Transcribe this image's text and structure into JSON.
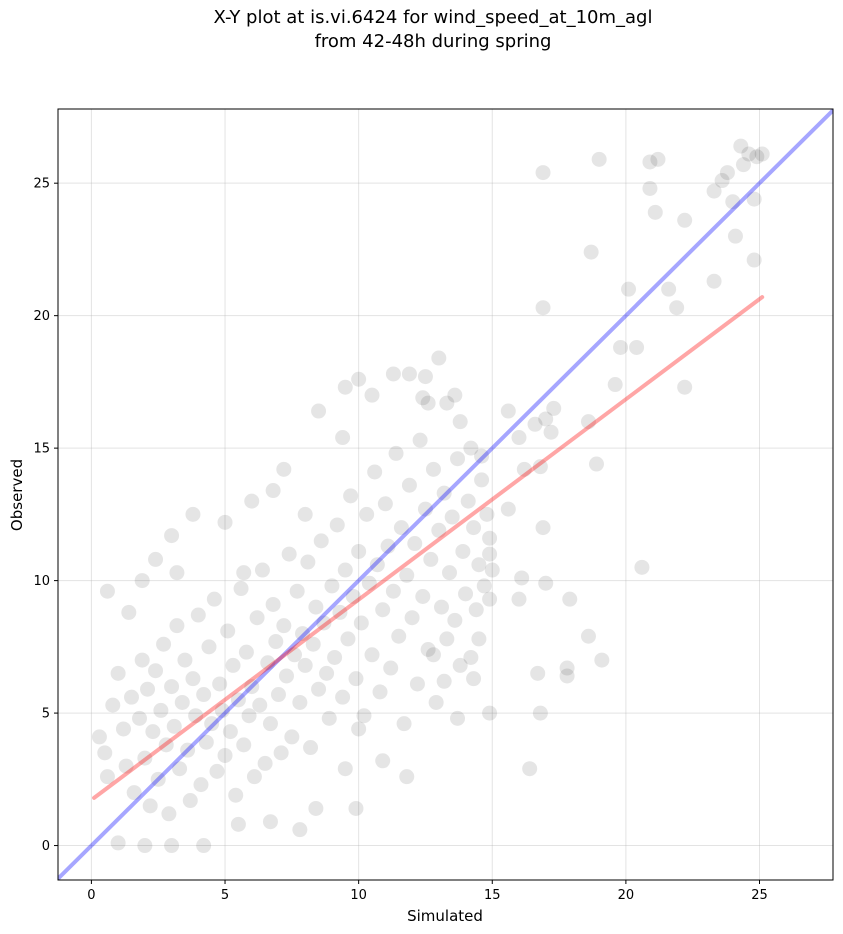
{
  "chart_data": {
    "type": "scatter",
    "title": "X-Y plot at is.vi.6424 for wind_speed_at_10m_agl\nfrom 42-48h during spring",
    "xlabel": "Simulated",
    "ylabel": "Observed",
    "xlim": [
      -1.25,
      27.75
    ],
    "ylim": [
      -1.3,
      27.8
    ],
    "xticks": [
      0,
      5,
      10,
      15,
      20,
      25
    ],
    "yticks": [
      0,
      5,
      10,
      15,
      20,
      25
    ],
    "grid": true,
    "point_color": "#000000",
    "point_alpha": 0.1,
    "reference_line": {
      "color": "#0000ff",
      "from": [
        -1.25,
        -1.25
      ],
      "to": [
        27.75,
        27.75
      ]
    },
    "regression_line": {
      "color": "#ff0000",
      "from": [
        0.1,
        1.8
      ],
      "to": [
        25.1,
        20.7
      ]
    },
    "points": [
      [
        0.6,
        9.6
      ],
      [
        1.4,
        8.8
      ],
      [
        1.9,
        10.0
      ],
      [
        2.4,
        10.8
      ],
      [
        3.0,
        11.7
      ],
      [
        3.8,
        12.5
      ],
      [
        3.2,
        10.3
      ],
      [
        5.0,
        12.2
      ],
      [
        5.7,
        10.3
      ],
      [
        6.0,
        13.0
      ],
      [
        6.8,
        13.4
      ],
      [
        7.2,
        14.2
      ],
      [
        8.0,
        12.5
      ],
      [
        8.5,
        16.4
      ],
      [
        9.4,
        15.4
      ],
      [
        9.5,
        17.3
      ],
      [
        10.0,
        17.6
      ],
      [
        10.5,
        17.0
      ],
      [
        11.3,
        17.8
      ],
      [
        11.9,
        17.8
      ],
      [
        12.4,
        16.9
      ],
      [
        12.5,
        17.7
      ],
      [
        13.0,
        18.4
      ],
      [
        12.6,
        16.7
      ],
      [
        13.3,
        16.7
      ],
      [
        13.6,
        17.0
      ],
      [
        13.8,
        16.0
      ],
      [
        14.2,
        15.0
      ],
      [
        14.6,
        14.7
      ],
      [
        15.6,
        16.4
      ],
      [
        16.0,
        15.4
      ],
      [
        16.6,
        15.9
      ],
      [
        17.0,
        16.1
      ],
      [
        17.2,
        15.6
      ],
      [
        17.3,
        16.5
      ],
      [
        16.8,
        14.3
      ],
      [
        16.2,
        14.2
      ],
      [
        15.6,
        12.7
      ],
      [
        15.0,
        10.4
      ],
      [
        14.9,
        11.0
      ],
      [
        14.9,
        9.3
      ],
      [
        14.5,
        7.8
      ],
      [
        14.3,
        6.3
      ],
      [
        14.9,
        5.0
      ],
      [
        13.7,
        4.8
      ],
      [
        13.2,
        6.2
      ],
      [
        12.8,
        7.2
      ],
      [
        11.8,
        2.6
      ],
      [
        10.9,
        3.2
      ],
      [
        10.0,
        4.4
      ],
      [
        9.5,
        2.9
      ],
      [
        9.9,
        1.4
      ],
      [
        8.4,
        1.4
      ],
      [
        7.8,
        0.6
      ],
      [
        6.7,
        0.9
      ],
      [
        5.5,
        0.8
      ],
      [
        4.2,
        0.0
      ],
      [
        3.0,
        0.0
      ],
      [
        2.0,
        0.0
      ],
      [
        1.0,
        0.1
      ],
      [
        0.3,
        4.1
      ],
      [
        0.5,
        3.5
      ],
      [
        0.6,
        2.6
      ],
      [
        0.8,
        5.3
      ],
      [
        1.0,
        6.5
      ],
      [
        1.2,
        4.4
      ],
      [
        1.3,
        3.0
      ],
      [
        1.5,
        5.6
      ],
      [
        1.6,
        2.0
      ],
      [
        1.8,
        4.8
      ],
      [
        1.9,
        7.0
      ],
      [
        2.0,
        3.3
      ],
      [
        2.1,
        5.9
      ],
      [
        2.2,
        1.5
      ],
      [
        2.3,
        4.3
      ],
      [
        2.4,
        6.6
      ],
      [
        2.5,
        2.5
      ],
      [
        2.6,
        5.1
      ],
      [
        2.7,
        7.6
      ],
      [
        2.8,
        3.8
      ],
      [
        2.9,
        1.2
      ],
      [
        3.0,
        6.0
      ],
      [
        3.1,
        4.5
      ],
      [
        3.2,
        8.3
      ],
      [
        3.3,
        2.9
      ],
      [
        3.4,
        5.4
      ],
      [
        3.5,
        7.0
      ],
      [
        3.6,
        3.6
      ],
      [
        3.7,
        1.7
      ],
      [
        3.8,
        6.3
      ],
      [
        3.9,
        4.9
      ],
      [
        4.0,
        8.7
      ],
      [
        4.1,
        2.3
      ],
      [
        4.2,
        5.7
      ],
      [
        4.3,
        3.9
      ],
      [
        4.4,
        7.5
      ],
      [
        4.5,
        4.6
      ],
      [
        4.6,
        9.3
      ],
      [
        4.7,
        2.8
      ],
      [
        4.8,
        6.1
      ],
      [
        4.9,
        5.1
      ],
      [
        5.0,
        3.4
      ],
      [
        5.1,
        8.1
      ],
      [
        5.2,
        4.3
      ],
      [
        5.3,
        6.8
      ],
      [
        5.4,
        1.9
      ],
      [
        5.5,
        5.5
      ],
      [
        5.6,
        9.7
      ],
      [
        5.7,
        3.8
      ],
      [
        5.8,
        7.3
      ],
      [
        5.9,
        4.9
      ],
      [
        6.0,
        6.0
      ],
      [
        6.1,
        2.6
      ],
      [
        6.2,
        8.6
      ],
      [
        6.3,
        5.3
      ],
      [
        6.4,
        10.4
      ],
      [
        6.5,
        3.1
      ],
      [
        6.6,
        6.9
      ],
      [
        6.7,
        4.6
      ],
      [
        6.8,
        9.1
      ],
      [
        6.9,
        7.7
      ],
      [
        7.0,
        5.7
      ],
      [
        7.1,
        3.5
      ],
      [
        7.2,
        8.3
      ],
      [
        7.3,
        6.4
      ],
      [
        7.4,
        11.0
      ],
      [
        7.5,
        4.1
      ],
      [
        7.6,
        7.2
      ],
      [
        7.7,
        9.6
      ],
      [
        7.8,
        5.4
      ],
      [
        7.9,
        8.0
      ],
      [
        8.0,
        6.8
      ],
      [
        8.1,
        10.7
      ],
      [
        8.2,
        3.7
      ],
      [
        8.3,
        7.6
      ],
      [
        8.4,
        9.0
      ],
      [
        8.5,
        5.9
      ],
      [
        8.6,
        11.5
      ],
      [
        8.7,
        8.4
      ],
      [
        8.8,
        6.5
      ],
      [
        8.9,
        4.8
      ],
      [
        9.0,
        9.8
      ],
      [
        9.1,
        7.1
      ],
      [
        9.2,
        12.1
      ],
      [
        9.3,
        8.8
      ],
      [
        9.4,
        5.6
      ],
      [
        9.5,
        10.4
      ],
      [
        9.6,
        7.8
      ],
      [
        9.7,
        13.2
      ],
      [
        9.8,
        9.4
      ],
      [
        9.9,
        6.3
      ],
      [
        10.0,
        11.1
      ],
      [
        10.1,
        8.4
      ],
      [
        10.2,
        4.9
      ],
      [
        10.3,
        12.5
      ],
      [
        10.4,
        9.9
      ],
      [
        10.5,
        7.2
      ],
      [
        10.6,
        14.1
      ],
      [
        10.7,
        10.6
      ],
      [
        10.8,
        5.8
      ],
      [
        10.9,
        8.9
      ],
      [
        11.0,
        12.9
      ],
      [
        11.1,
        11.3
      ],
      [
        11.2,
        6.7
      ],
      [
        11.3,
        9.6
      ],
      [
        11.4,
        14.8
      ],
      [
        11.5,
        7.9
      ],
      [
        11.6,
        12.0
      ],
      [
        11.7,
        4.6
      ],
      [
        11.8,
        10.2
      ],
      [
        11.9,
        13.6
      ],
      [
        12.0,
        8.6
      ],
      [
        12.1,
        11.4
      ],
      [
        12.2,
        6.1
      ],
      [
        12.3,
        15.3
      ],
      [
        12.4,
        9.4
      ],
      [
        12.5,
        12.7
      ],
      [
        12.6,
        7.4
      ],
      [
        12.7,
        10.8
      ],
      [
        12.8,
        14.2
      ],
      [
        12.9,
        5.4
      ],
      [
        13.0,
        11.9
      ],
      [
        13.1,
        9.0
      ],
      [
        13.2,
        13.3
      ],
      [
        13.3,
        7.8
      ],
      [
        13.4,
        10.3
      ],
      [
        13.5,
        12.4
      ],
      [
        13.6,
        8.5
      ],
      [
        13.7,
        14.6
      ],
      [
        13.8,
        6.8
      ],
      [
        13.9,
        11.1
      ],
      [
        14.0,
        9.5
      ],
      [
        14.1,
        13.0
      ],
      [
        14.2,
        7.1
      ],
      [
        14.3,
        12.0
      ],
      [
        14.4,
        8.9
      ],
      [
        14.5,
        10.6
      ],
      [
        14.6,
        13.8
      ],
      [
        14.7,
        9.8
      ],
      [
        14.8,
        12.5
      ],
      [
        14.9,
        11.6
      ],
      [
        16.0,
        9.3
      ],
      [
        16.1,
        10.1
      ],
      [
        16.4,
        2.9
      ],
      [
        16.7,
        6.5
      ],
      [
        16.8,
        5.0
      ],
      [
        16.9,
        12.0
      ],
      [
        17.0,
        9.9
      ],
      [
        17.8,
        6.7
      ],
      [
        17.8,
        6.4
      ],
      [
        17.9,
        9.3
      ],
      [
        18.6,
        7.9
      ],
      [
        19.1,
        7.0
      ],
      [
        20.6,
        10.5
      ],
      [
        16.9,
        20.3
      ],
      [
        16.9,
        25.4
      ],
      [
        18.7,
        22.4
      ],
      [
        19.0,
        25.9
      ],
      [
        18.6,
        16.0
      ],
      [
        18.9,
        14.4
      ],
      [
        19.6,
        17.4
      ],
      [
        19.8,
        18.8
      ],
      [
        20.1,
        21.0
      ],
      [
        20.4,
        18.8
      ],
      [
        20.9,
        25.8
      ],
      [
        20.9,
        24.8
      ],
      [
        21.1,
        23.9
      ],
      [
        21.2,
        25.9
      ],
      [
        21.6,
        21.0
      ],
      [
        21.9,
        20.3
      ],
      [
        22.2,
        23.6
      ],
      [
        22.2,
        17.3
      ],
      [
        23.3,
        24.7
      ],
      [
        23.6,
        25.1
      ],
      [
        23.8,
        25.4
      ],
      [
        24.0,
        24.3
      ],
      [
        24.1,
        23.0
      ],
      [
        24.3,
        26.4
      ],
      [
        24.4,
        25.7
      ],
      [
        24.6,
        26.1
      ],
      [
        24.8,
        24.4
      ],
      [
        24.9,
        26.0
      ],
      [
        25.1,
        26.1
      ],
      [
        24.8,
        22.1
      ],
      [
        23.3,
        21.3
      ]
    ]
  }
}
